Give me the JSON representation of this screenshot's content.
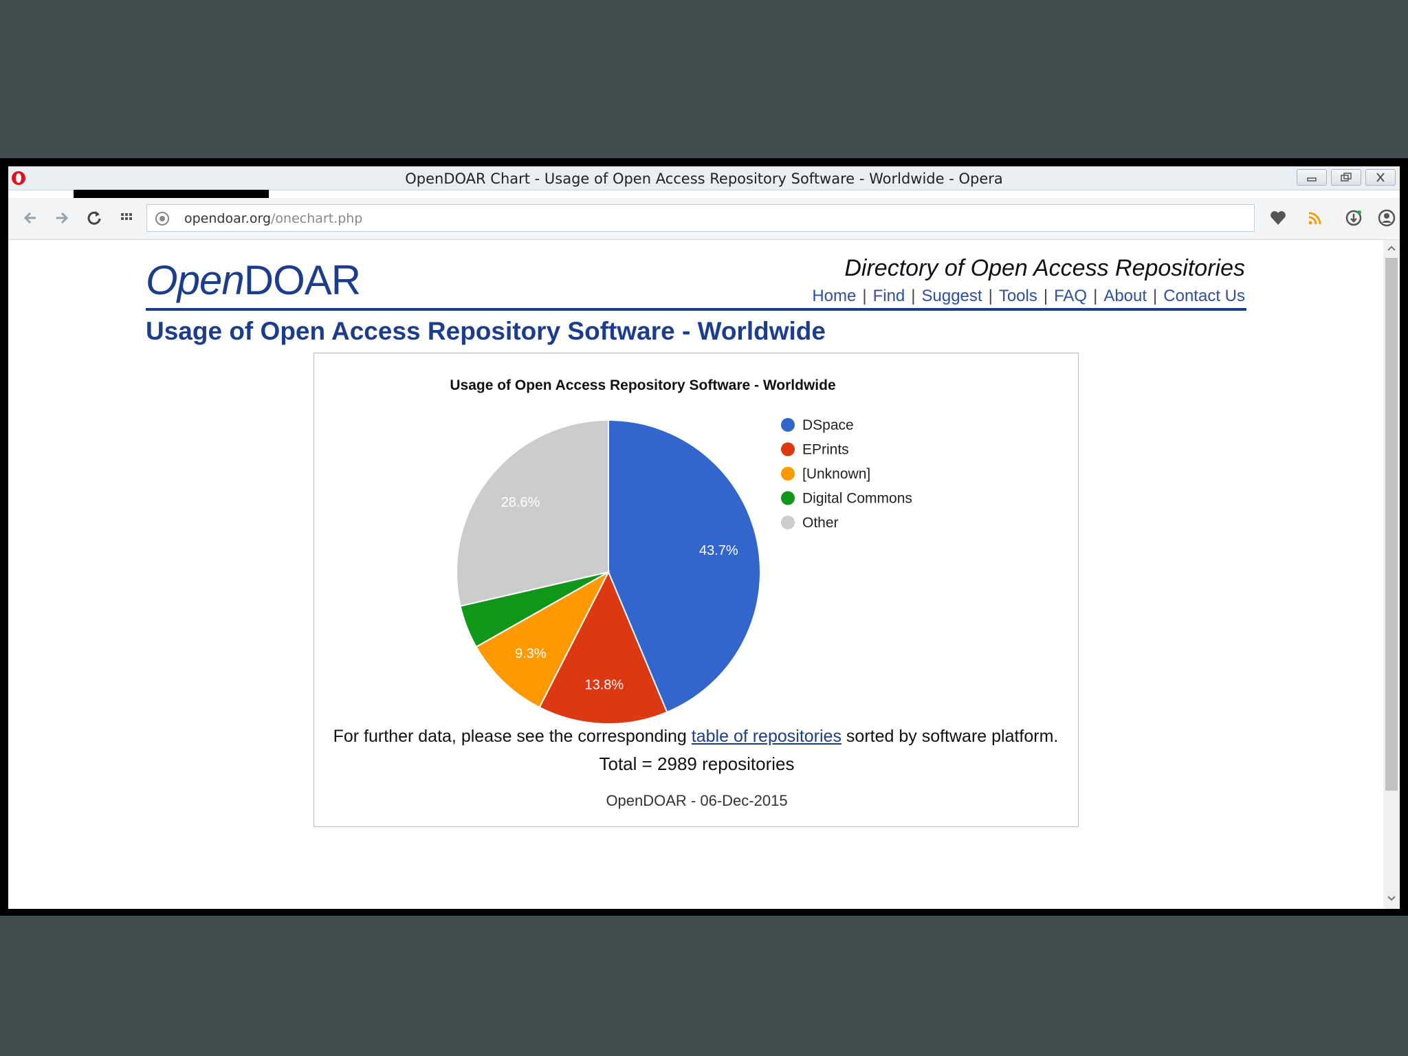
{
  "window": {
    "title": "OpenDOAR Chart - Usage of Open Access Repository Software - Worldwide - Opera"
  },
  "address": {
    "domain": "opendoar.org",
    "path": "/onechart.php"
  },
  "site": {
    "logo_open": "Open",
    "logo_doar": "DOAR",
    "tagline": "Directory of Open Access Repositories",
    "nav": [
      "Home",
      "Find",
      "Suggest",
      "Tools",
      "FAQ",
      "About",
      "Contact Us"
    ]
  },
  "page": {
    "title": "Usage of Open Access Repository Software - Worldwide",
    "total": "Total = 2989 repositories",
    "stamp": "OpenDOAR - 06-Dec-2015",
    "further_before": "For further data, please see the corresponding ",
    "further_link": "table of repositories",
    "further_after": " sorted by software platform."
  },
  "chart_data": {
    "type": "pie",
    "title": "Usage of Open Access Repository Software - Worldwide",
    "legend_position": "right",
    "slices": [
      {
        "label": "DSpace",
        "value": 43.7,
        "color": "#3366cc",
        "data_label": "43.7%"
      },
      {
        "label": "EPrints",
        "value": 13.8,
        "color": "#dc3912",
        "data_label": "13.8%"
      },
      {
        "label": "[Unknown]",
        "value": 9.3,
        "color": "#ff9900",
        "data_label": "9.3%"
      },
      {
        "label": "Digital Commons",
        "value": 4.6,
        "color": "#109618",
        "data_label": ""
      },
      {
        "label": "Other",
        "value": 28.6,
        "color": "#cccccc",
        "data_label": "28.6%"
      }
    ]
  }
}
